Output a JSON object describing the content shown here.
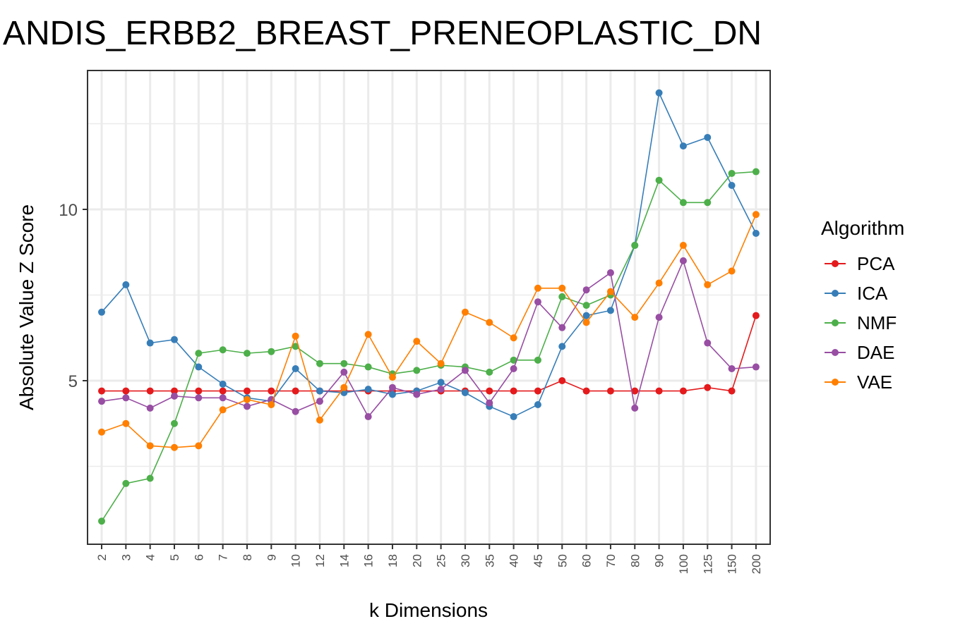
{
  "chart_data": {
    "type": "line",
    "title": "ANDIS_ERBB2_BREAST_PRENEOPLASTIC_DN",
    "xlabel": "k Dimensions",
    "ylabel": "Absolute Value Z Score",
    "x": [
      "2",
      "3",
      "4",
      "5",
      "6",
      "7",
      "8",
      "9",
      "10",
      "12",
      "14",
      "16",
      "18",
      "20",
      "25",
      "30",
      "35",
      "40",
      "45",
      "50",
      "60",
      "70",
      "80",
      "90",
      "100",
      "125",
      "150",
      "200"
    ],
    "yticks": [
      5,
      10
    ],
    "ylim": [
      0.5,
      14
    ],
    "grid": true,
    "legend": {
      "title": "Algorithm",
      "position": "right"
    },
    "series": [
      {
        "name": "PCA",
        "color": "#e41a1c",
        "values": [
          4.7,
          4.7,
          4.7,
          4.7,
          4.7,
          4.7,
          4.7,
          4.7,
          4.7,
          4.7,
          4.7,
          4.7,
          4.7,
          4.7,
          4.7,
          4.7,
          4.7,
          4.7,
          4.7,
          5.0,
          4.7,
          4.7,
          4.7,
          4.7,
          4.7,
          4.8,
          4.7,
          6.9
        ]
      },
      {
        "name": "ICA",
        "color": "#377eb8",
        "values": [
          7.0,
          7.8,
          6.1,
          6.2,
          5.4,
          4.9,
          4.5,
          4.4,
          5.35,
          4.7,
          4.65,
          4.75,
          4.6,
          4.7,
          4.95,
          4.65,
          4.25,
          3.95,
          4.3,
          6.0,
          6.9,
          7.05,
          8.95,
          13.4,
          11.85,
          12.1,
          10.7,
          9.3
        ]
      },
      {
        "name": "NMF",
        "color": "#4daf4a",
        "values": [
          0.9,
          2.0,
          2.15,
          3.75,
          5.8,
          5.9,
          5.8,
          5.85,
          6.0,
          5.5,
          5.5,
          5.4,
          5.2,
          5.3,
          5.45,
          5.4,
          5.25,
          5.6,
          5.6,
          7.45,
          7.2,
          7.5,
          8.95,
          10.85,
          10.2,
          10.2,
          11.05,
          11.1
        ]
      },
      {
        "name": "DAE",
        "color": "#984ea3",
        "values": [
          4.4,
          4.5,
          4.2,
          4.55,
          4.5,
          4.5,
          4.25,
          4.45,
          4.1,
          4.4,
          5.25,
          3.95,
          4.8,
          4.6,
          4.75,
          5.3,
          4.35,
          5.35,
          7.3,
          6.55,
          7.65,
          8.15,
          4.2,
          6.85,
          8.5,
          6.1,
          5.35,
          5.4
        ]
      },
      {
        "name": "VAE",
        "color": "#ff7f00",
        "values": [
          3.5,
          3.75,
          3.1,
          3.05,
          3.1,
          4.15,
          4.45,
          4.3,
          6.3,
          3.85,
          4.8,
          6.35,
          5.1,
          6.15,
          5.5,
          7.0,
          6.7,
          6.25,
          7.7,
          7.7,
          6.7,
          7.6,
          6.85,
          7.85,
          8.95,
          7.8,
          8.2,
          9.85
        ]
      }
    ]
  }
}
